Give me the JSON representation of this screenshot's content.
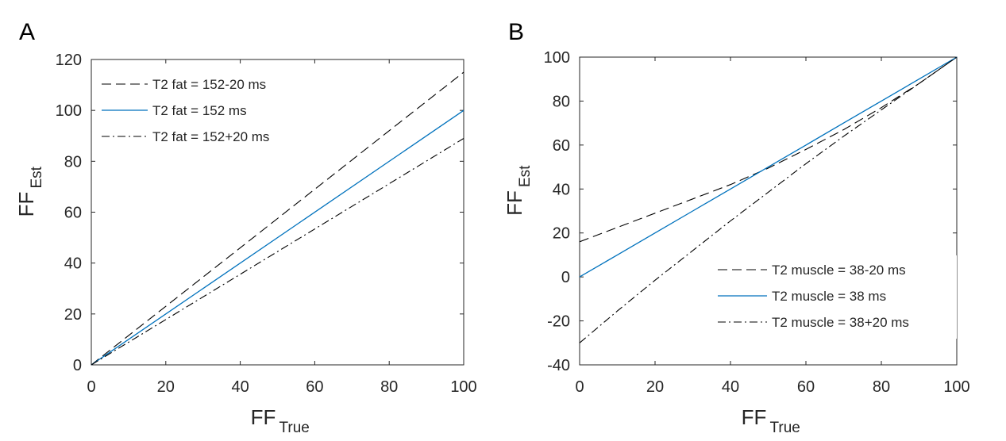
{
  "figure": {
    "panels": [
      {
        "letter": "A"
      },
      {
        "letter": "B"
      }
    ]
  },
  "chart_data": [
    {
      "type": "line",
      "panel": "A",
      "xlabel_main": "FF",
      "xlabel_sub": "True",
      "ylabel_main": "FF",
      "ylabel_sub": "Est",
      "xlim": [
        0,
        100
      ],
      "ylim": [
        0,
        120
      ],
      "xticks": [
        0,
        20,
        40,
        60,
        80,
        100
      ],
      "yticks": [
        0,
        20,
        40,
        60,
        80,
        100,
        120
      ],
      "grid": false,
      "legend_position": "top-left",
      "series": [
        {
          "name": "T2 fat = 152-20 ms",
          "style": "dashed",
          "color": "#000000",
          "x": [
            0,
            100
          ],
          "y": [
            0,
            115
          ]
        },
        {
          "name": "T2 fat = 152 ms",
          "style": "solid",
          "color": "#0072BD",
          "x": [
            0,
            100
          ],
          "y": [
            0,
            100
          ]
        },
        {
          "name": "T2 fat = 152+20 ms",
          "style": "dashdot",
          "color": "#000000",
          "x": [
            0,
            100
          ],
          "y": [
            0,
            89
          ]
        }
      ]
    },
    {
      "type": "line",
      "panel": "B",
      "xlabel_main": "FF",
      "xlabel_sub": "True",
      "ylabel_main": "FF",
      "ylabel_sub": "Est",
      "xlim": [
        0,
        100
      ],
      "ylim": [
        -40,
        100
      ],
      "xticks": [
        0,
        20,
        40,
        60,
        80,
        100
      ],
      "yticks": [
        -40,
        -20,
        0,
        20,
        40,
        60,
        80,
        100
      ],
      "grid": false,
      "legend_position": "bottom-right",
      "series": [
        {
          "name": "T2 muscle = 38-20 ms",
          "style": "dashed",
          "color": "#000000",
          "x": [
            0,
            10,
            20,
            30,
            40,
            50,
            60,
            70,
            80,
            90,
            100
          ],
          "y": [
            16,
            22.5,
            29,
            35.5,
            42,
            49.5,
            58,
            67,
            77,
            88,
            100
          ]
        },
        {
          "name": "T2 muscle = 38 ms",
          "style": "solid",
          "color": "#0072BD",
          "x": [
            0,
            10,
            20,
            30,
            40,
            50,
            60,
            70,
            80,
            90,
            100
          ],
          "y": [
            0,
            10,
            20,
            30,
            40,
            50,
            60,
            70,
            80,
            90,
            100
          ]
        },
        {
          "name": "T2 muscle = 38+20 ms",
          "style": "dashdot",
          "color": "#000000",
          "x": [
            0,
            10,
            20,
            30,
            40,
            50,
            60,
            70,
            80,
            90,
            100
          ],
          "y": [
            -30,
            -15.5,
            -1.5,
            12,
            25.5,
            38.5,
            51.5,
            64,
            76,
            88,
            100
          ]
        }
      ]
    }
  ]
}
